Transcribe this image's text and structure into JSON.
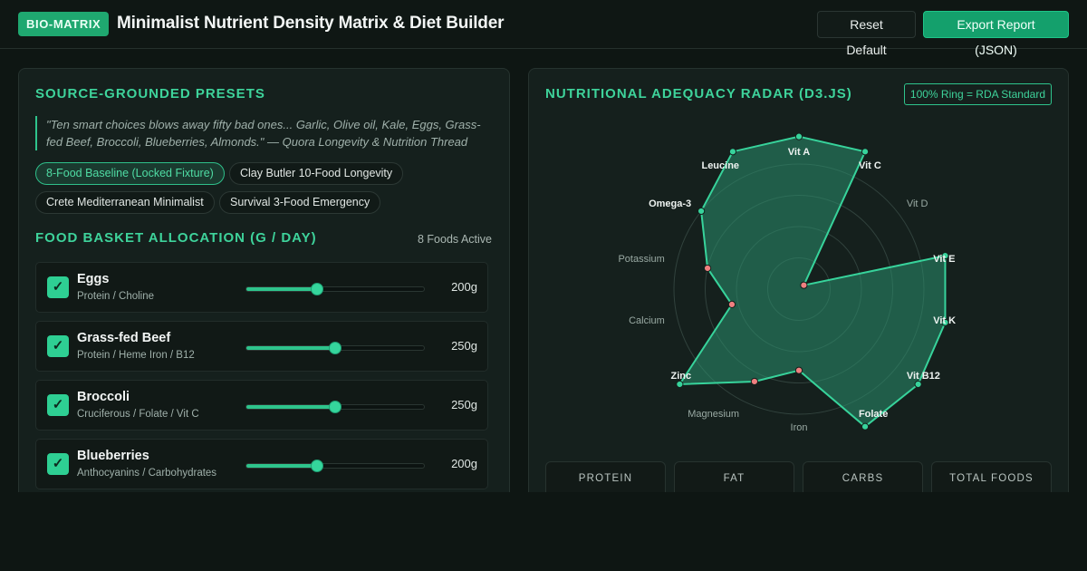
{
  "header": {
    "badge": "BIO-MATRIX",
    "title": "Minimalist Nutrient Density Matrix & Diet Builder",
    "reset_label": "Reset Default",
    "export_label": "Export Report (JSON)"
  },
  "presets": {
    "title": "SOURCE-GROUNDED PRESETS",
    "quote": "\"Ten smart choices blows away fifty bad ones... Garlic, Olive oil, Kale, Eggs, Grass-fed Beef, Broccoli, Blueberries, Almonds.\" — Quora Longevity & Nutrition Thread",
    "chips": [
      {
        "label": "8-Food Baseline (Locked Fixture)",
        "active": true
      },
      {
        "label": "Clay Butler 10-Food Longevity",
        "active": false
      },
      {
        "label": "Crete Mediterranean Minimalist",
        "active": false
      },
      {
        "label": "Survival 3-Food Emergency",
        "active": false
      }
    ]
  },
  "basket": {
    "title": "FOOD BASKET ALLOCATION (G / DAY)",
    "active_count": "8 Foods Active",
    "foods": [
      {
        "name": "Eggs",
        "sub": "Protein / Choline",
        "grams": "200g",
        "level": 0.4,
        "check": "✓"
      },
      {
        "name": "Grass-fed Beef",
        "sub": "Protein / Heme Iron / B12",
        "grams": "250g",
        "level": 0.5,
        "check": "✓"
      },
      {
        "name": "Broccoli",
        "sub": "Cruciferous / Folate / Vit C",
        "grams": "250g",
        "level": 0.5,
        "check": "✓"
      },
      {
        "name": "Blueberries",
        "sub": "Anthocyanins / Carbohydrates",
        "grams": "200g",
        "level": 0.4,
        "check": "✓"
      }
    ]
  },
  "radar": {
    "title": "NUTRITIONAL ADEQUACY RADAR (D3.JS)",
    "badge": "100% Ring = RDA Standard",
    "colors": {
      "area": "#2a8f6d",
      "stroke": "#37d39b",
      "met": "#37d39b",
      "unmet": "#f08080"
    }
  },
  "chart_data": {
    "type": "radar",
    "axes": [
      "Vit A",
      "Vit C",
      "Vit D",
      "Vit E",
      "Vit K",
      "Vit B12",
      "Folate",
      "Iron",
      "Magnesium",
      "Zinc",
      "Calcium",
      "Potassium",
      "Omega-3",
      "Leucine"
    ],
    "values": [
      1.22,
      1.22,
      0.05,
      1.2,
      1.2,
      1.22,
      1.22,
      0.65,
      0.82,
      1.22,
      0.55,
      0.75,
      1.0,
      1.22
    ],
    "rings": [
      0.25,
      0.5,
      0.75,
      1.0
    ],
    "met_threshold": 1.0
  },
  "stats": {
    "cards": [
      {
        "label": "PROTEIN"
      },
      {
        "label": "FAT"
      },
      {
        "label": "CARBS"
      },
      {
        "label": "TOTAL FOODS"
      }
    ]
  }
}
